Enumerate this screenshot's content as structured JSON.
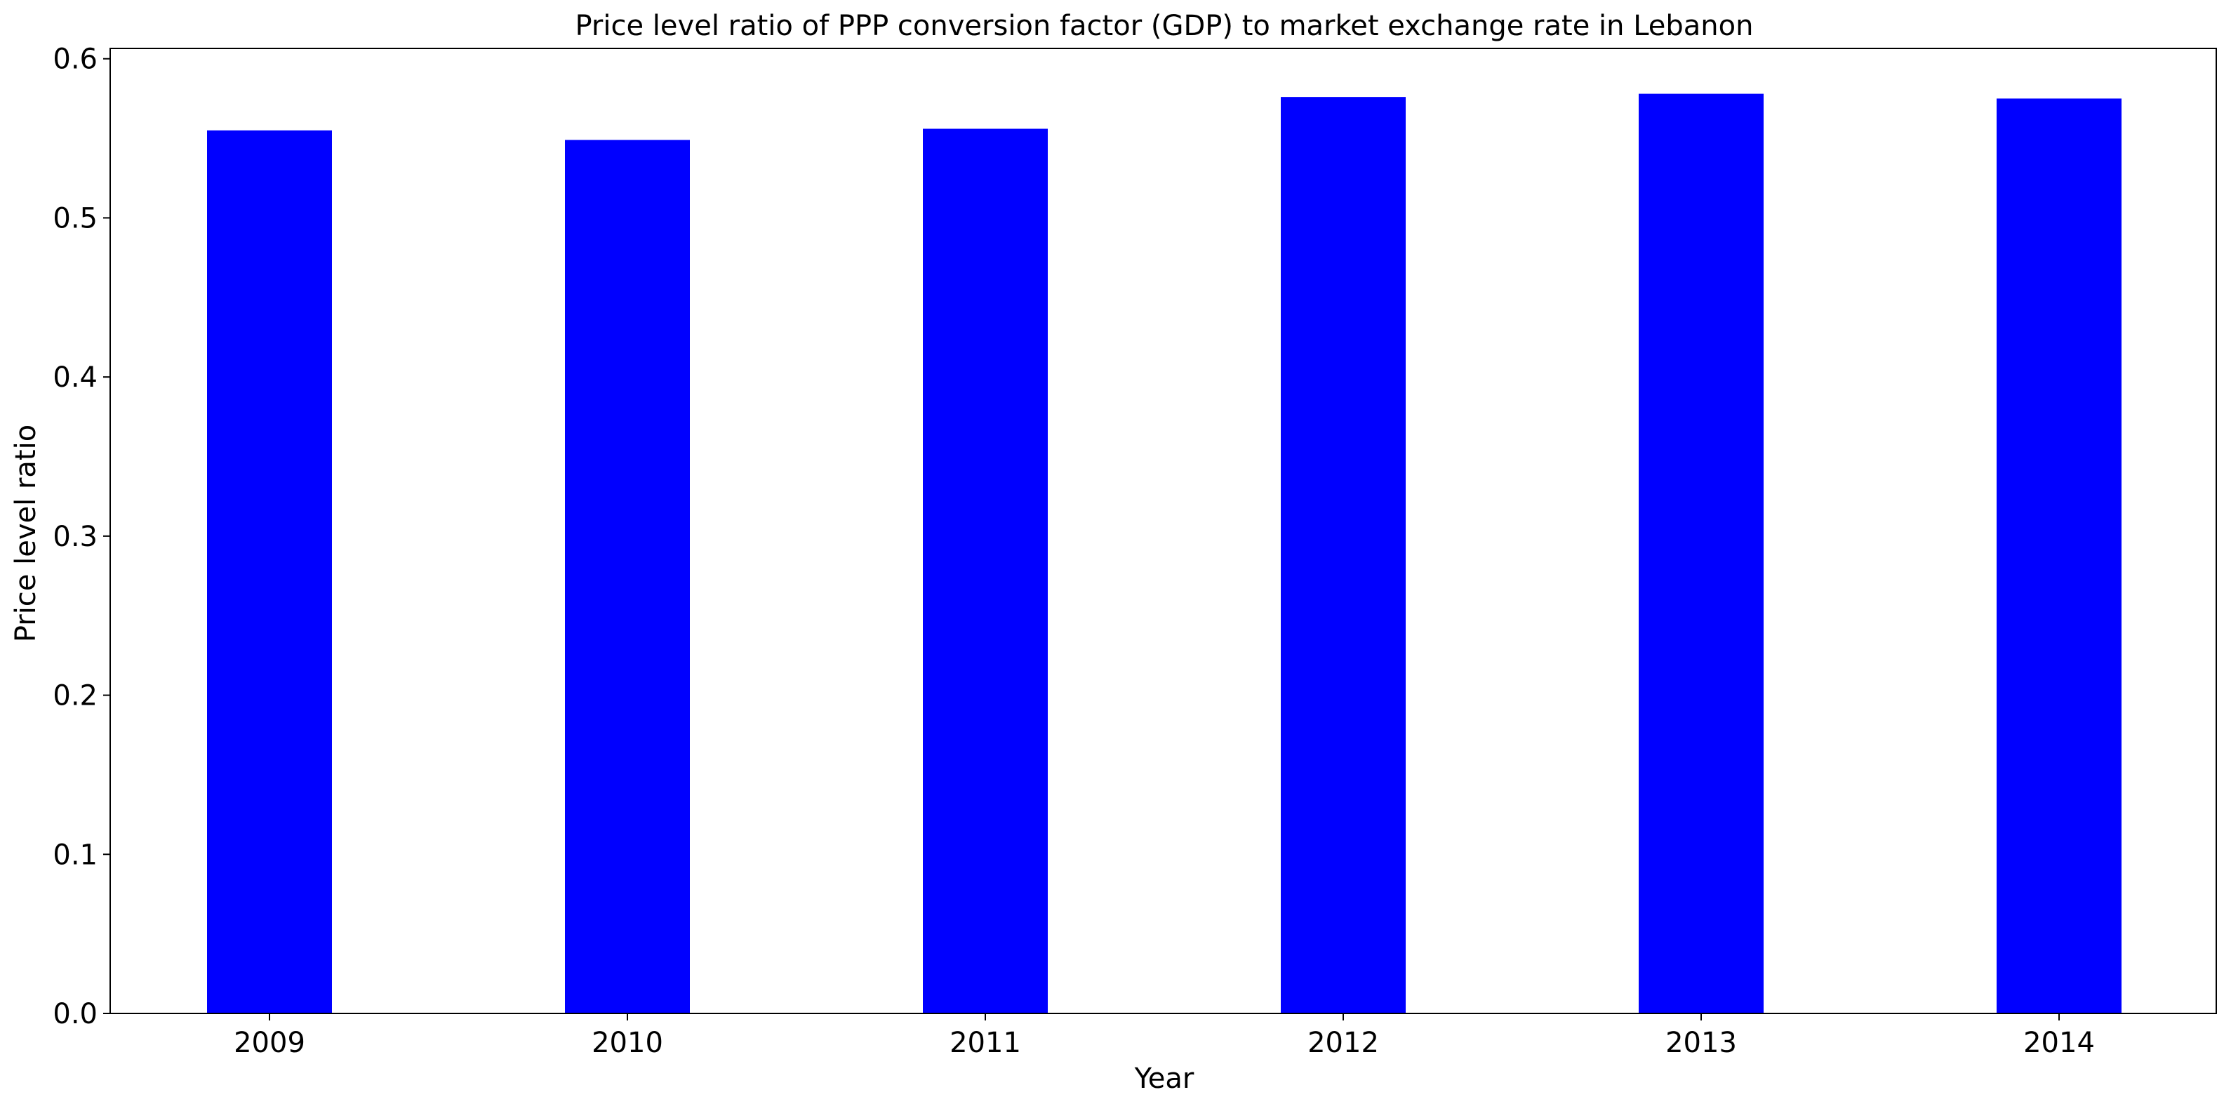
{
  "chart_data": {
    "type": "bar",
    "title": "Price level ratio of PPP conversion factor (GDP) to market exchange rate in Lebanon",
    "xlabel": "Year",
    "ylabel": "Price level ratio",
    "categories": [
      "2009",
      "2010",
      "2011",
      "2012",
      "2013",
      "2014"
    ],
    "values": [
      0.555,
      0.549,
      0.556,
      0.576,
      0.578,
      0.575
    ],
    "ylim": [
      0,
      0.6065
    ],
    "yticks": [
      "0.0",
      "0.1",
      "0.2",
      "0.3",
      "0.4",
      "0.5",
      "0.6"
    ],
    "bar_color": "#0000ff",
    "grid": false,
    "legend": "none"
  }
}
